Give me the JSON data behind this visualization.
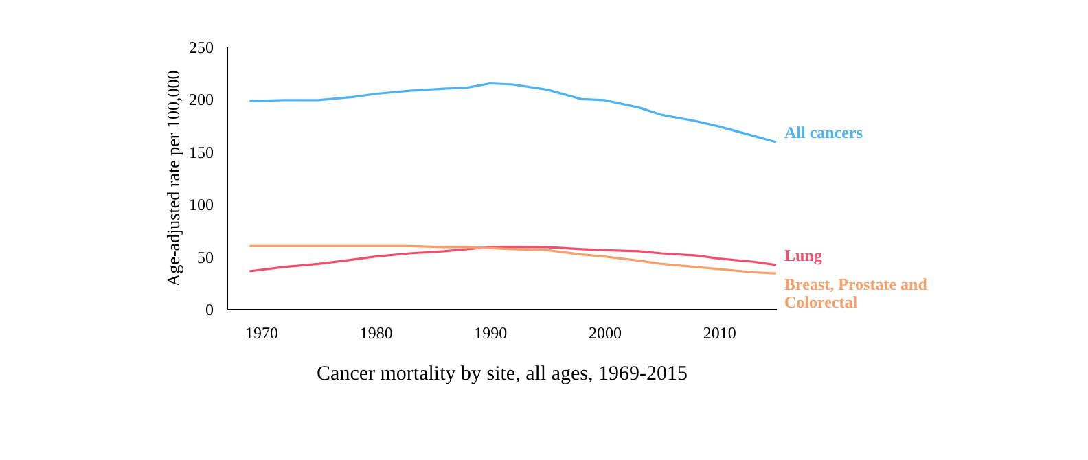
{
  "chart_data": {
    "type": "line",
    "xlabel": "Cancer mortality by site, all ages, 1969-2015",
    "ylabel": "Age-adjusted rate per 100,000",
    "x": [
      1969,
      1972,
      1975,
      1978,
      1980,
      1983,
      1986,
      1988,
      1990,
      1992,
      1995,
      1998,
      2000,
      2003,
      2005,
      2008,
      2010,
      2013,
      2015
    ],
    "series": [
      {
        "name": "All cancers",
        "color": "#4db3f2",
        "values": [
          198,
          199,
          199,
          202,
          205,
          208,
          210,
          211,
          215,
          214,
          209,
          200,
          199,
          192,
          185,
          179,
          174,
          165,
          159
        ]
      },
      {
        "name": "Lung",
        "color": "#f0506e",
        "values": [
          36,
          40,
          43,
          47,
          50,
          53,
          55,
          57,
          59,
          59,
          59,
          57,
          56,
          55,
          53,
          51,
          48,
          45,
          42
        ]
      },
      {
        "name": "Breast, Prostate and Colorectal",
        "color": "#f5a06a",
        "values": [
          60,
          60,
          60,
          60,
          60,
          60,
          59,
          59,
          58,
          57,
          56,
          52,
          50,
          46,
          43,
          40,
          38,
          35,
          34
        ]
      }
    ],
    "xlim": [
      1967,
      2015
    ],
    "xticks": [
      1970,
      1980,
      1990,
      2000,
      2010
    ],
    "ylim": [
      0,
      250
    ],
    "yticks": [
      0,
      50,
      100,
      150,
      200,
      250
    ],
    "grid": false,
    "legend": false,
    "marker": "none",
    "line_style": "solid"
  }
}
